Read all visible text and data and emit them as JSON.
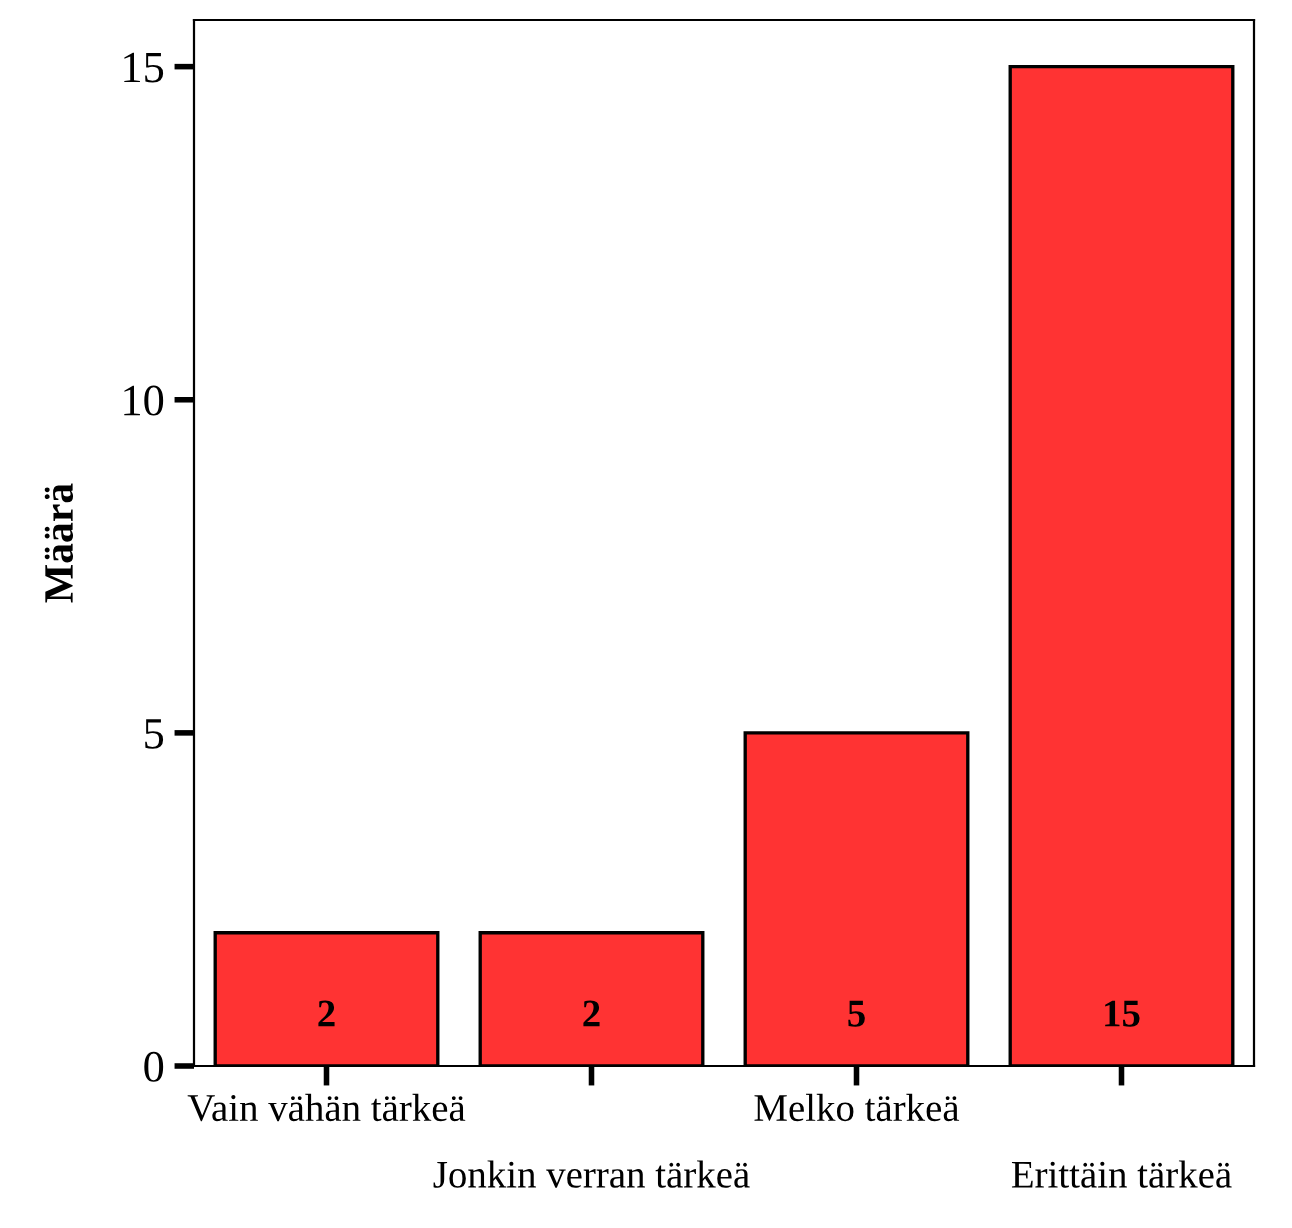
{
  "chart_data": {
    "type": "bar",
    "ylabel": "Määrä",
    "categories": [
      "Vain vähän tärkeä",
      "Jonkin verran tärkeä",
      "Melko tärkeä",
      "Erittäin tärkeä"
    ],
    "values": [
      2,
      2,
      5,
      15
    ],
    "color": "#ff3333",
    "ylim": [
      0,
      15.7
    ],
    "yticks": [
      0,
      5,
      10,
      15
    ],
    "grid": false,
    "legend": false,
    "data_labels": true
  }
}
